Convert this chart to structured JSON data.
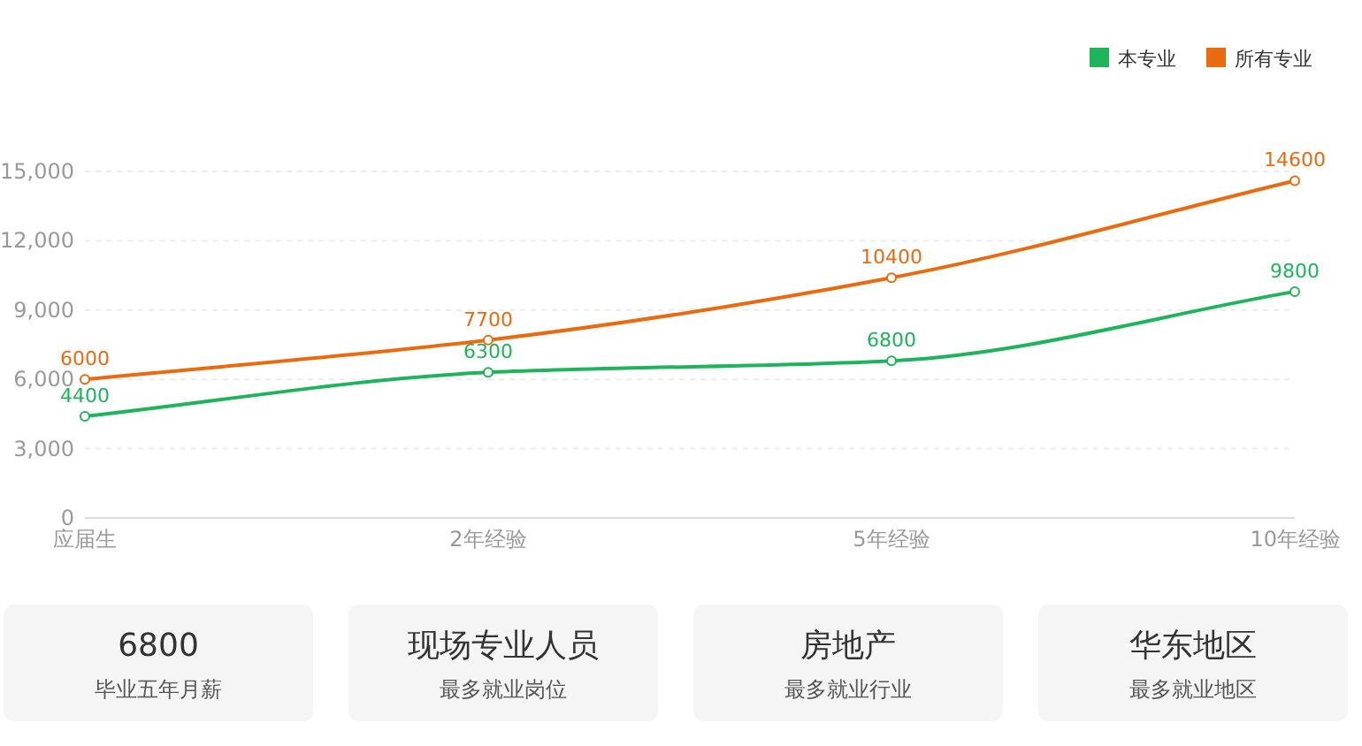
{
  "chart_data": [
    {
      "type": "line",
      "categories": [
        "应届生",
        "2年经验",
        "5年经验",
        "10年经验"
      ],
      "series": [
        {
          "name": "本专业",
          "color": "#1fb35b",
          "values": [
            4400,
            6300,
            6800,
            9800
          ]
        },
        {
          "name": "所有专业",
          "color": "#ea6a10",
          "values": [
            6000,
            7700,
            10400,
            14600
          ]
        }
      ],
      "ylim": [
        0,
        15000
      ],
      "yticks": [
        0,
        {
          "value": 3000,
          "label": "3,000"
        },
        {
          "value": 6000,
          "label": "6,000"
        },
        {
          "value": 9000,
          "label": "9,000"
        },
        {
          "value": 12000,
          "label": "12,000"
        },
        {
          "value": 15000,
          "label": "15,000"
        }
      ],
      "grid": "y",
      "legend": "top right",
      "marker": "circle",
      "line_style": "solid",
      "data_labels": true
    },
    {
      "type": "other",
      "annotations": [
        "6800",
        "毕业五年月薪",
        "现场专业人员",
        "最多就业岗位",
        "房地产",
        "最多就业行业",
        "华东地区",
        "最多就业地区"
      ]
    }
  ]
}
